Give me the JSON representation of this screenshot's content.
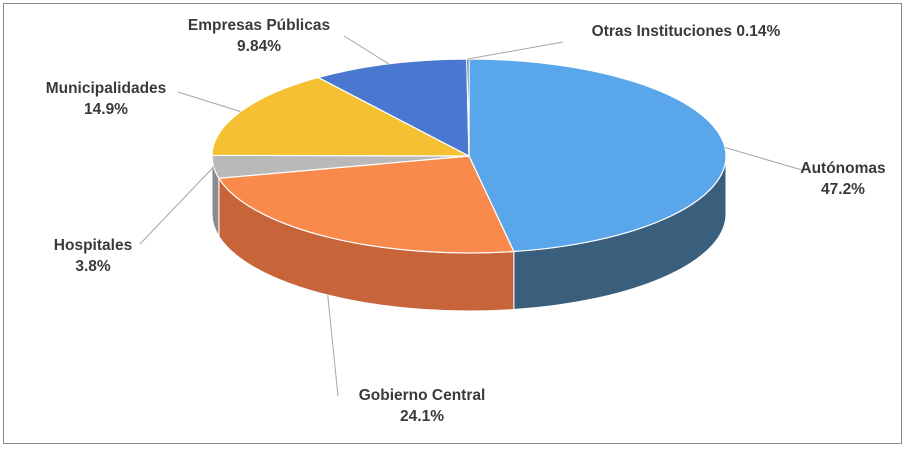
{
  "chart_data": {
    "type": "pie",
    "style": "3d",
    "title": "",
    "slices": [
      {
        "name": "Autónomas",
        "value": 47.2,
        "label_value": "47.2%",
        "color": "#5aa6ea",
        "side_color": "#3a5f7d"
      },
      {
        "name": "Gobierno Central",
        "value": 24.1,
        "label_value": "24.1%",
        "color": "#fa8a4b",
        "side_color": "#c8643a"
      },
      {
        "name": "Hospitales",
        "value": 3.8,
        "label_value": "3.8%",
        "color": "#b9b9b9",
        "side_color": "#8c8c8c"
      },
      {
        "name": "Municipalidades",
        "value": 14.9,
        "label_value": "14.9%",
        "color": "#f5c133",
        "side_color": "#c49a28"
      },
      {
        "name": "Empresas Públicas",
        "value": 9.84,
        "label_value": "9.84%",
        "color": "#4a78d0",
        "side_color": "#35589a"
      },
      {
        "name": "Otras Instituciones",
        "value": 0.14,
        "label_value": "0.14%",
        "color": "#1c3f7a",
        "side_color": "#12294f"
      }
    ],
    "legend": "none",
    "data_labels": "outside with leader lines"
  }
}
